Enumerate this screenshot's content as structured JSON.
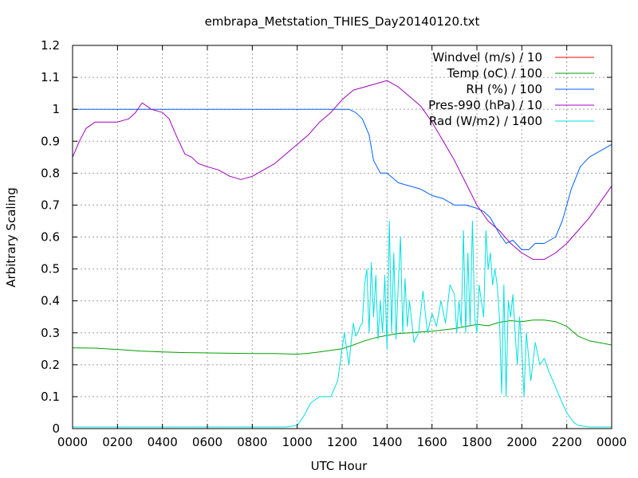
{
  "chart_data": {
    "type": "line",
    "title": "embrapa_Metstation_THIES_Day20140120.txt",
    "xlabel": "UTC Hour",
    "ylabel": "Arbitrary Scaling",
    "xlim": [
      0,
      24
    ],
    "ylim": [
      0,
      1.2
    ],
    "x_ticks": [
      {
        "value": 0,
        "label": "0000"
      },
      {
        "value": 2,
        "label": "0200"
      },
      {
        "value": 4,
        "label": "0400"
      },
      {
        "value": 6,
        "label": "0600"
      },
      {
        "value": 8,
        "label": "0800"
      },
      {
        "value": 10,
        "label": "1000"
      },
      {
        "value": 12,
        "label": "1200"
      },
      {
        "value": 14,
        "label": "1400"
      },
      {
        "value": 16,
        "label": "1600"
      },
      {
        "value": 18,
        "label": "1800"
      },
      {
        "value": 20,
        "label": "2000"
      },
      {
        "value": 22,
        "label": "2200"
      },
      {
        "value": 24,
        "label": "0000"
      }
    ],
    "y_ticks": [
      {
        "value": 0,
        "label": "0"
      },
      {
        "value": 0.1,
        "label": "0.1"
      },
      {
        "value": 0.2,
        "label": "0.2"
      },
      {
        "value": 0.3,
        "label": "0.3"
      },
      {
        "value": 0.4,
        "label": "0.4"
      },
      {
        "value": 0.5,
        "label": "0.5"
      },
      {
        "value": 0.6,
        "label": "0.6"
      },
      {
        "value": 0.7,
        "label": "0.7"
      },
      {
        "value": 0.8,
        "label": "0.8"
      },
      {
        "value": 0.9,
        "label": "0.9"
      },
      {
        "value": 1.0,
        "label": "1"
      },
      {
        "value": 1.1,
        "label": "1.1"
      },
      {
        "value": 1.2,
        "label": "1.2"
      }
    ],
    "grid": true,
    "legend_position": "top-right",
    "series": [
      {
        "name": "Windvel (m/s) / 10",
        "color": "#ff0000",
        "x": [],
        "y": []
      },
      {
        "name": "Temp (oC) / 100",
        "color": "#00a000",
        "x": [
          0,
          1,
          2,
          3,
          4,
          5,
          6,
          7,
          8,
          9,
          10,
          10.5,
          11,
          12,
          12.5,
          13,
          13.5,
          14,
          14.5,
          15,
          16,
          17,
          17.5,
          18,
          18.5,
          19,
          19.5,
          20,
          20.5,
          21,
          21.5,
          22,
          22.5,
          23,
          24
        ],
        "y": [
          0.253,
          0.252,
          0.248,
          0.243,
          0.24,
          0.238,
          0.237,
          0.236,
          0.235,
          0.235,
          0.233,
          0.236,
          0.24,
          0.25,
          0.262,
          0.275,
          0.285,
          0.292,
          0.298,
          0.3,
          0.305,
          0.313,
          0.32,
          0.326,
          0.322,
          0.333,
          0.338,
          0.335,
          0.34,
          0.34,
          0.335,
          0.32,
          0.29,
          0.275,
          0.262
        ]
      },
      {
        "name": "RH (%) / 100",
        "color": "#0060ff",
        "x": [
          0,
          1,
          2,
          4,
          6,
          8,
          10,
          11.5,
          12.3,
          12.6,
          12.9,
          13.2,
          13.4,
          13.7,
          14.0,
          14.5,
          15.0,
          15.5,
          16.0,
          16.5,
          17.0,
          17.5,
          18.0,
          18.3,
          18.6,
          19.0,
          19.3,
          19.6,
          20.0,
          20.3,
          20.6,
          21.0,
          21.5,
          21.8,
          22.2,
          22.6,
          23.0,
          23.5,
          24
        ],
        "y": [
          1.0,
          1.0,
          1.0,
          1.0,
          1.0,
          1.0,
          1.0,
          1.0,
          1.0,
          0.99,
          0.97,
          0.92,
          0.84,
          0.8,
          0.8,
          0.77,
          0.76,
          0.75,
          0.73,
          0.72,
          0.7,
          0.7,
          0.69,
          0.68,
          0.66,
          0.61,
          0.58,
          0.59,
          0.56,
          0.56,
          0.58,
          0.58,
          0.6,
          0.65,
          0.75,
          0.82,
          0.85,
          0.87,
          0.89
        ]
      },
      {
        "name": "Pres-990 (hPa) / 10",
        "color": "#a000c0",
        "x": [
          0,
          0.3,
          0.6,
          1.0,
          1.5,
          2.0,
          2.5,
          2.8,
          3.1,
          3.5,
          4.0,
          4.3,
          4.6,
          5.0,
          5.3,
          5.6,
          6.0,
          6.5,
          7.0,
          7.5,
          8.0,
          8.5,
          9.0,
          9.5,
          10.0,
          10.5,
          11.0,
          11.5,
          12.0,
          12.5,
          13.0,
          13.5,
          14.0,
          14.5,
          15.0,
          15.5,
          16.0,
          16.5,
          17.0,
          17.5,
          18.0,
          18.5,
          19.0,
          19.5,
          20.0,
          20.5,
          21.0,
          21.5,
          22.0,
          22.5,
          23.0,
          23.5,
          24
        ],
        "y": [
          0.85,
          0.9,
          0.94,
          0.96,
          0.96,
          0.96,
          0.97,
          0.99,
          1.02,
          1.0,
          0.99,
          0.97,
          0.92,
          0.86,
          0.85,
          0.83,
          0.82,
          0.81,
          0.79,
          0.78,
          0.79,
          0.81,
          0.83,
          0.86,
          0.89,
          0.92,
          0.96,
          0.99,
          1.03,
          1.06,
          1.07,
          1.08,
          1.09,
          1.07,
          1.04,
          1.01,
          0.96,
          0.9,
          0.84,
          0.77,
          0.7,
          0.65,
          0.62,
          0.58,
          0.55,
          0.53,
          0.53,
          0.55,
          0.58,
          0.62,
          0.66,
          0.71,
          0.76
        ]
      },
      {
        "name": "Rad (W/m2) / 1400",
        "color": "#00e0e0",
        "x": [
          0,
          5,
          9.5,
          10.0,
          10.3,
          10.6,
          11.0,
          11.5,
          11.8,
          12.0,
          12.1,
          12.3,
          12.4,
          12.5,
          12.6,
          12.7,
          12.8,
          12.9,
          13.0,
          13.1,
          13.2,
          13.3,
          13.4,
          13.5,
          13.6,
          13.7,
          13.8,
          13.9,
          14.0,
          14.1,
          14.2,
          14.3,
          14.4,
          14.5,
          14.6,
          14.7,
          14.8,
          14.9,
          15.0,
          15.2,
          15.4,
          15.6,
          15.8,
          16.0,
          16.2,
          16.4,
          16.6,
          16.8,
          17.0,
          17.1,
          17.2,
          17.3,
          17.4,
          17.5,
          17.6,
          17.7,
          17.8,
          17.9,
          18.0,
          18.1,
          18.2,
          18.3,
          18.4,
          18.5,
          18.6,
          18.7,
          18.8,
          18.9,
          19.0,
          19.1,
          19.2,
          19.3,
          19.4,
          19.5,
          19.6,
          19.7,
          19.8,
          19.9,
          20.0,
          20.1,
          20.2,
          20.4,
          20.6,
          20.8,
          21.0,
          21.2,
          21.5,
          21.8,
          22.0,
          22.3,
          22.5,
          23.0,
          24
        ],
        "y": [
          0.005,
          0.005,
          0.005,
          0.01,
          0.04,
          0.08,
          0.1,
          0.1,
          0.15,
          0.25,
          0.3,
          0.2,
          0.27,
          0.33,
          0.29,
          0.3,
          0.32,
          0.33,
          0.45,
          0.5,
          0.3,
          0.52,
          0.35,
          0.48,
          0.28,
          0.4,
          0.3,
          0.48,
          0.25,
          0.65,
          0.3,
          0.55,
          0.28,
          0.45,
          0.6,
          0.3,
          0.47,
          0.32,
          0.4,
          0.27,
          0.3,
          0.43,
          0.3,
          0.36,
          0.32,
          0.4,
          0.33,
          0.45,
          0.42,
          0.3,
          0.4,
          0.32,
          0.62,
          0.3,
          0.55,
          0.32,
          0.65,
          0.35,
          0.3,
          0.45,
          0.4,
          0.35,
          0.62,
          0.5,
          0.55,
          0.45,
          0.5,
          0.45,
          0.35,
          0.11,
          0.45,
          0.1,
          0.4,
          0.35,
          0.42,
          0.3,
          0.2,
          0.35,
          0.25,
          0.1,
          0.3,
          0.15,
          0.27,
          0.2,
          0.22,
          0.18,
          0.13,
          0.08,
          0.05,
          0.02,
          0.01,
          0.005,
          0.005
        ]
      }
    ]
  }
}
